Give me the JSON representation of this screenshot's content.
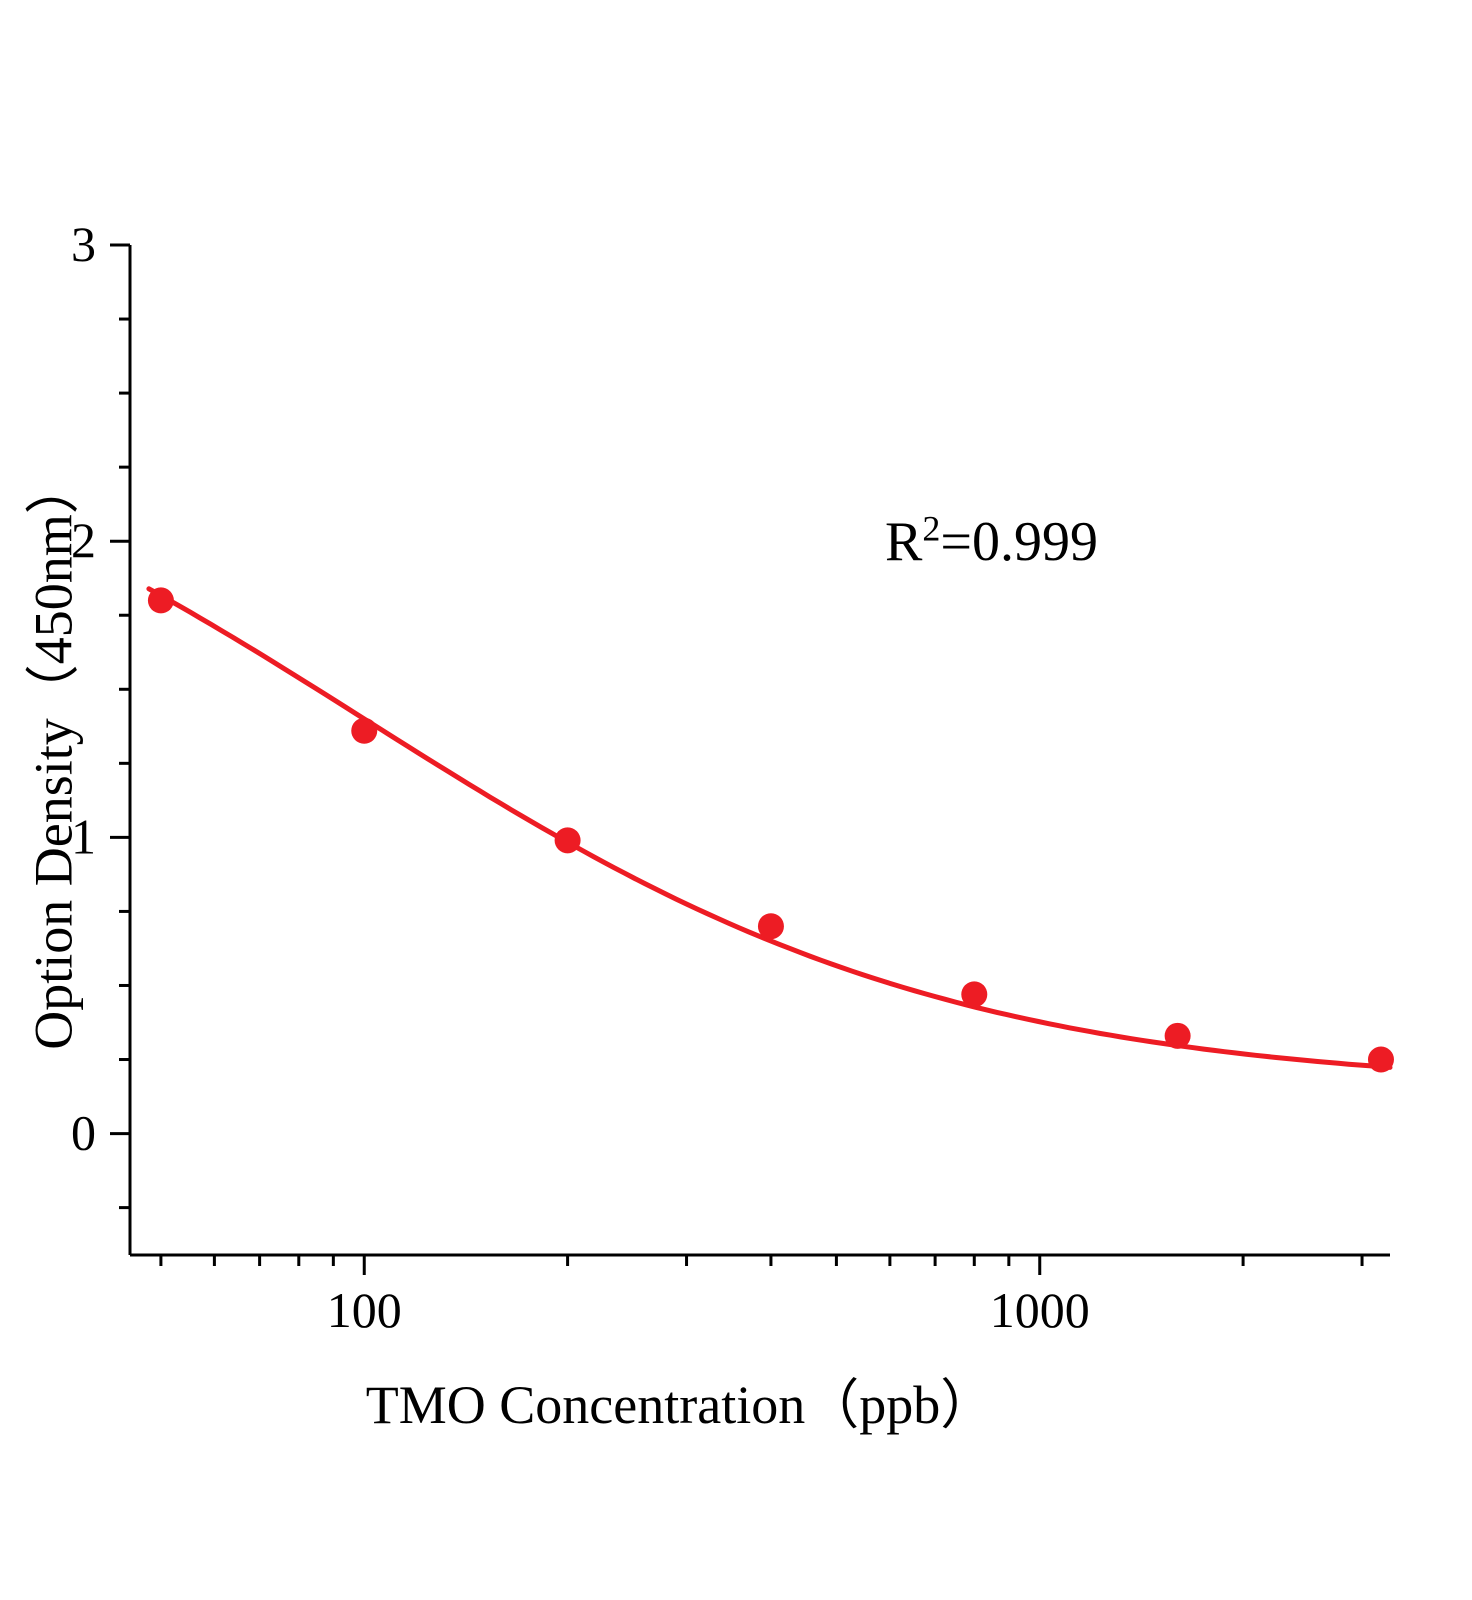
{
  "chart_data": {
    "type": "scatter",
    "xlabel": "TMO Concentration（ppb）",
    "ylabel": "Option Density（450nm）",
    "x_scale": "log",
    "x": [
      50,
      100,
      200,
      400,
      800,
      1600,
      3200
    ],
    "y": [
      1.8,
      1.36,
      0.99,
      0.7,
      0.47,
      0.33,
      0.25
    ],
    "x_ticks_major": [
      100,
      1000
    ],
    "x_tick_labels": [
      "100",
      "1000"
    ],
    "x_ticks_minor": [
      50,
      60,
      70,
      80,
      90,
      200,
      300,
      400,
      500,
      600,
      700,
      800,
      900,
      2000,
      3000
    ],
    "y_ticks_major": [
      0,
      1,
      2,
      3
    ],
    "y_tick_labels": [
      "0",
      "1",
      "2",
      "3"
    ],
    "y_minor_step": 0.25,
    "xlim": [
      45,
      3300
    ],
    "ylim": [
      -0.41,
      3
    ],
    "grid": false,
    "legend": "none",
    "fit_curve": {
      "model": "4PL",
      "a": 2.65,
      "b": 1,
      "c": 100,
      "d": 0.15,
      "x_start": 48,
      "x_end": 3300
    },
    "point_color": "#ed1c24",
    "line_color": "#ed1c24",
    "axis_color": "#000000",
    "point_radius": 13,
    "annotation": {
      "base": "R",
      "exponent": "2",
      "rest": "=0.999"
    }
  }
}
